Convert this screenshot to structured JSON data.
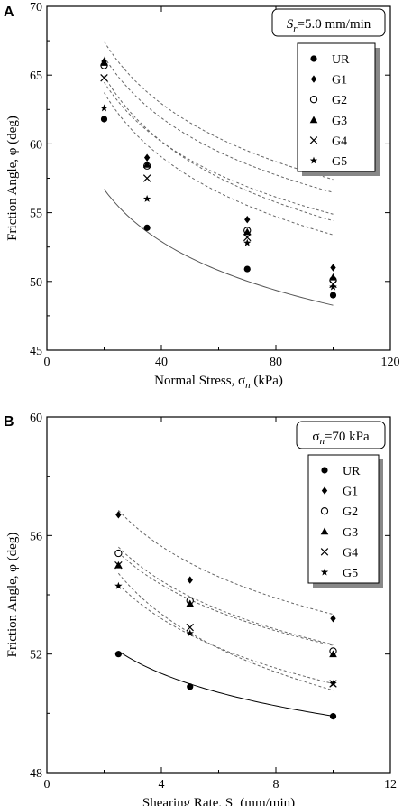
{
  "chart_data": [
    {
      "type": "scatter",
      "panel_label": "A",
      "annotation": {
        "prefix": "S",
        "sub": "r",
        "suffix": "=5.0 mm/min"
      },
      "xlabel": {
        "text": "Normal Stress, σ",
        "sub": "n",
        "tail": " (kPa)"
      },
      "ylabel": "Friction Angle, φ (deg)",
      "xlim": [
        0,
        120
      ],
      "ylim": [
        45,
        70
      ],
      "xticks": [
        "0",
        "40",
        "80",
        "120"
      ],
      "yticks": [
        "45",
        "50",
        "55",
        "60",
        "65",
        "70"
      ],
      "legend_position": "top-right",
      "grid": false,
      "series": [
        {
          "name": "UR",
          "marker": "circle",
          "x": [
            20,
            35,
            70,
            100
          ],
          "y": [
            61.8,
            53.9,
            50.9,
            49.0
          ],
          "fit": {
            "a": 76.5,
            "b": -0.1,
            "x_range": [
              20,
              100
            ]
          },
          "fit_style": "solid"
        },
        {
          "name": "G1",
          "marker": "diamond",
          "x": [
            20,
            35,
            70,
            100
          ],
          "y": [
            66.0,
            59.0,
            54.5,
            51.0
          ],
          "fit": {
            "a": 91.0,
            "b": -0.1,
            "x_range": [
              20,
              100
            ]
          },
          "fit_style": "dashed"
        },
        {
          "name": "G2",
          "marker": "open-circle",
          "x": [
            20,
            35,
            70,
            100
          ],
          "y": [
            65.7,
            58.4,
            53.7,
            50.1
          ],
          "fit": {
            "a": 90.3,
            "b": -0.11,
            "x_range": [
              20,
              100
            ]
          },
          "fit_style": "dashed"
        },
        {
          "name": "G3",
          "marker": "triangle",
          "x": [
            20,
            35,
            70,
            100
          ],
          "y": [
            65.9,
            58.5,
            53.6,
            50.3
          ],
          "fit": {
            "a": 89.5,
            "b": -0.1,
            "x_range": [
              20,
              100
            ]
          },
          "fit_style": "dashed"
        },
        {
          "name": "G4",
          "marker": "x",
          "x": [
            20,
            35,
            70,
            100
          ],
          "y": [
            64.8,
            57.5,
            53.2,
            49.8
          ],
          "fit": {
            "a": 88.6,
            "b": -0.11,
            "x_range": [
              20,
              100
            ]
          },
          "fit_style": "dashed"
        },
        {
          "name": "G5",
          "marker": "star",
          "x": [
            20,
            35,
            70,
            100
          ],
          "y": [
            62.6,
            56.0,
            52.8,
            49.6
          ],
          "fit": {
            "a": 87.0,
            "b": -0.1,
            "x_range": [
              20,
              100
            ]
          },
          "fit_style": "dashed"
        }
      ]
    },
    {
      "type": "scatter",
      "panel_label": "B",
      "annotation": {
        "prefix": "σ",
        "sub": "n",
        "suffix": "=70 kPa"
      },
      "xlabel": {
        "text": "Shearing Rate, S",
        "sub": "r",
        "tail": " (mm/min)"
      },
      "ylabel": "Friction Angle, φ (deg)",
      "xlim": [
        0,
        12
      ],
      "ylim": [
        48,
        60
      ],
      "xticks": [
        "0",
        "4",
        "8",
        "12"
      ],
      "yticks": [
        "48",
        "52",
        "56",
        "60"
      ],
      "legend_position": "top-right",
      "grid": false,
      "series": [
        {
          "name": "UR",
          "marker": "circle",
          "x": [
            2.5,
            5,
            10
          ],
          "y": [
            52.0,
            50.9,
            49.9
          ],
          "fit": {
            "a": 53.6,
            "b": -0.031,
            "x_range": [
              2.5,
              10
            ]
          },
          "fit_style": "solid"
        },
        {
          "name": "G1",
          "marker": "diamond",
          "x": [
            2.5,
            5,
            10
          ],
          "y": [
            56.7,
            54.5,
            53.2
          ],
          "fit": {
            "a": 59.3,
            "b": -0.046,
            "x_range": [
              2.5,
              10
            ]
          },
          "fit_style": "dashed"
        },
        {
          "name": "G2",
          "marker": "open-circle",
          "x": [
            2.5,
            5,
            10
          ],
          "y": [
            55.4,
            53.8,
            52.1
          ],
          "fit": {
            "a": 57.9,
            "b": -0.044,
            "x_range": [
              2.5,
              10
            ]
          },
          "fit_style": "dashed"
        },
        {
          "name": "G3",
          "marker": "triangle",
          "x": [
            2.5,
            5,
            10
          ],
          "y": [
            55.0,
            53.7,
            52.0
          ],
          "fit": {
            "a": 57.6,
            "b": -0.042,
            "x_range": [
              2.5,
              10
            ]
          },
          "fit_style": "dashed"
        },
        {
          "name": "G4",
          "marker": "x",
          "x": [
            2.5,
            5,
            10
          ],
          "y": [
            55.0,
            52.9,
            51.0
          ],
          "fit": {
            "a": 57.5,
            "b": -0.054,
            "x_range": [
              2.5,
              10
            ]
          },
          "fit_style": "dashed"
        },
        {
          "name": "G5",
          "marker": "star",
          "x": [
            2.5,
            5,
            10
          ],
          "y": [
            54.3,
            52.7,
            51.0
          ],
          "fit": {
            "a": 56.7,
            "b": -0.046,
            "x_range": [
              2.5,
              10
            ]
          },
          "fit_style": "dashed"
        }
      ]
    }
  ]
}
